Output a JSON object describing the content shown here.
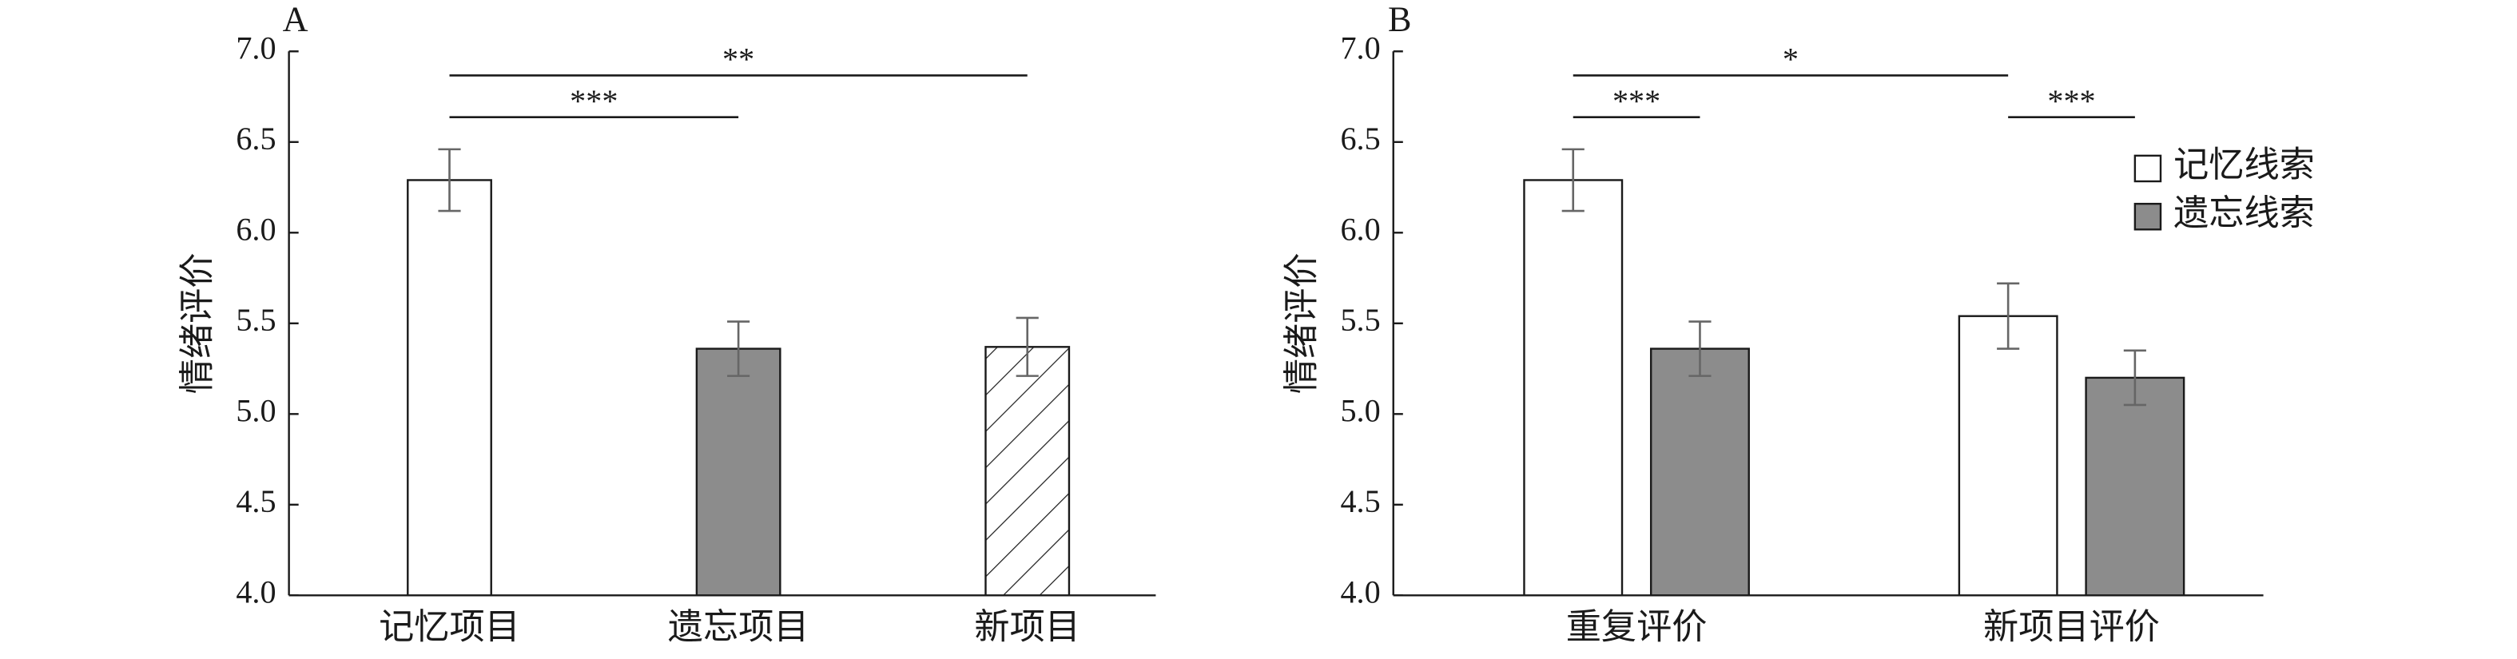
{
  "chart_data": [
    {
      "type": "bar",
      "panel_label": "A",
      "y_label": "情绪评价",
      "categories": [
        "记忆项目",
        "遗忘项目",
        "新项目"
      ],
      "values": [
        6.29,
        5.36,
        5.37
      ],
      "errors": [
        0.17,
        0.15,
        0.16
      ],
      "fills": [
        "#ffffff",
        "#8c8c8c",
        "hatch"
      ],
      "ylim": [
        4.0,
        7.0
      ],
      "yticks": [
        {
          "value": 4.0,
          "label": "4.0"
        },
        {
          "value": 4.5,
          "label": "4.5"
        },
        {
          "value": 5.0,
          "label": "5.0"
        },
        {
          "value": 5.5,
          "label": "5.5"
        },
        {
          "value": 6.0,
          "label": "6.0"
        },
        {
          "value": 6.5,
          "label": "6.5"
        },
        {
          "value": 7.0,
          "label": "7.0"
        }
      ],
      "annotations": [
        {
          "text": "***",
          "from": 0,
          "to": 1
        },
        {
          "text": "**",
          "from": 0,
          "to": 2
        }
      ]
    },
    {
      "type": "grouped_bar",
      "panel_label": "B",
      "y_label": "情绪评价",
      "categories": [
        "重复评价",
        "新项目评价"
      ],
      "series": [
        {
          "name": "记忆线索",
          "color": "#ffffff",
          "values": [
            6.29,
            5.54
          ],
          "errors": [
            0.17,
            0.18
          ]
        },
        {
          "name": "遗忘线索",
          "color": "#8c8c8c",
          "values": [
            5.36,
            5.2
          ],
          "errors": [
            0.15,
            0.15
          ]
        }
      ],
      "ylim": [
        4.0,
        7.0
      ],
      "yticks": [
        {
          "value": 4.0,
          "label": "4.0"
        },
        {
          "value": 4.5,
          "label": "4.5"
        },
        {
          "value": 5.0,
          "label": "5.0"
        },
        {
          "value": 5.5,
          "label": "5.5"
        },
        {
          "value": 6.0,
          "label": "6.0"
        },
        {
          "value": 6.5,
          "label": "6.5"
        },
        {
          "value": 7.0,
          "label": "7.0"
        }
      ],
      "legend": "upper right",
      "annotations": [
        {
          "text": "***",
          "from": [
            0,
            0
          ],
          "to": [
            0,
            1
          ]
        },
        {
          "text": "*",
          "from": [
            0,
            0
          ],
          "to": [
            1,
            0
          ]
        },
        {
          "text": "***",
          "from": [
            1,
            0
          ],
          "to": [
            1,
            1
          ]
        }
      ]
    }
  ]
}
